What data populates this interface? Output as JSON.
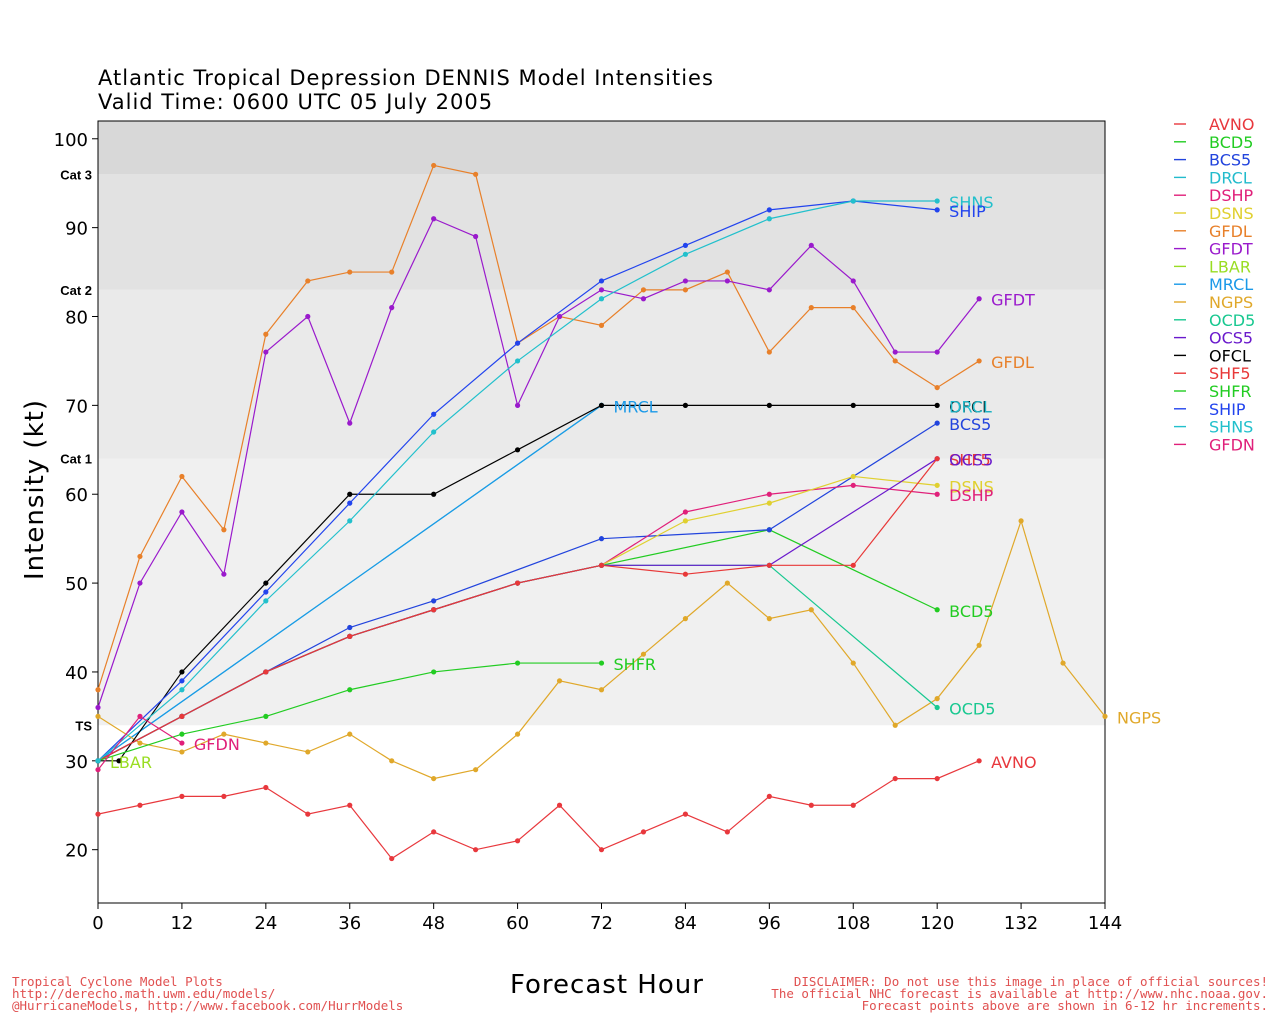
{
  "title_line1": "Atlantic Tropical Depression DENNIS Model Intensities",
  "title_line2": "Valid Time: 0600 UTC 05 July 2005",
  "footer_left": [
    "Tropical Cyclone Model Plots",
    "http://derecho.math.uwm.edu/models/",
    "@HurricaneModels, http://www.facebook.com/HurrModels"
  ],
  "footer_right": [
    "DISCLAIMER: Do not use this image in place of official sources!",
    "The official NHC forecast is available at http://www.nhc.noaa.gov.",
    "Forecast points above are shown in 6-12 hr increments."
  ],
  "chart_data": {
    "type": "line",
    "xlabel": "Forecast Hour",
    "ylabel": "Intensity (kt)",
    "xlim": [
      0,
      144
    ],
    "ylim": [
      14,
      102
    ],
    "xticks": [
      0,
      12,
      24,
      36,
      48,
      60,
      72,
      84,
      96,
      108,
      120,
      132,
      144
    ],
    "yticks": [
      20,
      30,
      40,
      50,
      60,
      70,
      80,
      90,
      100
    ],
    "bands": [
      {
        "label": "TS",
        "from": 34,
        "to": 64,
        "color": "#f0f0f0"
      },
      {
        "label": "Cat 1",
        "from": 64,
        "to": 83,
        "color": "#eaeaea"
      },
      {
        "label": "Cat 2",
        "from": 83,
        "to": 96,
        "color": "#e2e2e2"
      },
      {
        "label": "Cat 3",
        "from": 96,
        "to": 102,
        "color": "#d8d8d8"
      }
    ],
    "band_labels": [
      {
        "label": "TS",
        "value": 34
      },
      {
        "label": "Cat 1",
        "value": 64
      },
      {
        "label": "Cat 2",
        "value": 83
      },
      {
        "label": "Cat 3",
        "value": 96
      }
    ],
    "legend_position": "right",
    "series": [
      {
        "name": "AVNO",
        "color": "#e8383d",
        "x": [
          0,
          6,
          12,
          18,
          24,
          30,
          36,
          42,
          48,
          54,
          60,
          66,
          72,
          78,
          84,
          90,
          96,
          102,
          108,
          114,
          120,
          126
        ],
        "y": [
          24,
          25,
          26,
          26,
          27,
          24,
          25,
          19,
          22,
          20,
          21,
          25,
          20,
          22,
          24,
          22,
          26,
          25,
          25,
          28,
          28,
          30
        ]
      },
      {
        "name": "BCD5",
        "color": "#22cc22",
        "x": [
          0,
          12,
          24,
          36,
          48,
          60,
          72,
          96,
          120
        ],
        "y": [
          30,
          35,
          40,
          44,
          47,
          50,
          52,
          56,
          47
        ]
      },
      {
        "name": "BCS5",
        "color": "#2244dd",
        "x": [
          0,
          12,
          24,
          36,
          48,
          72,
          96,
          120
        ],
        "y": [
          30,
          35,
          40,
          45,
          48,
          55,
          56,
          68
        ]
      },
      {
        "name": "DRCL",
        "color": "#22bbcc",
        "x": [
          0,
          72
        ],
        "y": [
          30,
          70
        ]
      },
      {
        "name": "DSHP",
        "color": "#e0207a",
        "x": [
          0,
          12,
          24,
          36,
          48,
          60,
          72,
          84,
          96,
          108,
          120
        ],
        "y": [
          30,
          35,
          40,
          44,
          47,
          50,
          52,
          58,
          60,
          61,
          60
        ]
      },
      {
        "name": "DSNS",
        "color": "#e0d030",
        "x": [
          0,
          12,
          24,
          36,
          48,
          60,
          72,
          84,
          96,
          108,
          120
        ],
        "y": [
          30,
          35,
          40,
          44,
          47,
          50,
          52,
          57,
          59,
          62,
          61
        ]
      },
      {
        "name": "GFDL",
        "color": "#e8802a",
        "x": [
          0,
          6,
          12,
          18,
          24,
          30,
          36,
          42,
          48,
          54,
          60,
          66,
          72,
          78,
          84,
          90,
          96,
          102,
          108,
          114,
          120,
          126
        ],
        "y": [
          38,
          53,
          62,
          56,
          78,
          84,
          85,
          85,
          97,
          96,
          77,
          80,
          79,
          83,
          83,
          85,
          76,
          81,
          81,
          75,
          72,
          75
        ]
      },
      {
        "name": "GFDT",
        "color": "#9a1acc",
        "x": [
          0,
          6,
          12,
          18,
          24,
          30,
          36,
          42,
          48,
          54,
          60,
          66,
          72,
          78,
          84,
          90,
          96,
          102,
          108,
          114,
          120,
          126
        ],
        "y": [
          36,
          50,
          58,
          51,
          76,
          80,
          68,
          81,
          91,
          89,
          70,
          80,
          83,
          82,
          84,
          84,
          83,
          88,
          84,
          76,
          76,
          82
        ]
      },
      {
        "name": "LBAR",
        "color": "#99dd22",
        "x": [
          0
        ],
        "y": [
          30
        ]
      },
      {
        "name": "MRCL",
        "color": "#1a99e8",
        "x": [
          0,
          72
        ],
        "y": [
          30,
          70
        ]
      },
      {
        "name": "NGPS",
        "color": "#e0a82a",
        "x": [
          0,
          6,
          12,
          18,
          24,
          30,
          36,
          42,
          48,
          54,
          60,
          66,
          72,
          78,
          84,
          90,
          96,
          102,
          108,
          114,
          120,
          126,
          132,
          138,
          144
        ],
        "y": [
          35,
          32,
          31,
          33,
          32,
          31,
          33,
          30,
          28,
          29,
          33,
          39,
          38,
          42,
          46,
          50,
          46,
          47,
          41,
          34,
          37,
          43,
          57,
          41,
          35
        ]
      },
      {
        "name": "OCD5",
        "color": "#18c890",
        "x": [
          0,
          12,
          24,
          36,
          48,
          60,
          72,
          96,
          120
        ],
        "y": [
          30,
          35,
          40,
          44,
          47,
          50,
          52,
          52,
          36
        ]
      },
      {
        "name": "OCS5",
        "color": "#6a1acc",
        "x": [
          0,
          12,
          24,
          36,
          48,
          60,
          72,
          96,
          120
        ],
        "y": [
          30,
          35,
          40,
          44,
          47,
          50,
          52,
          52,
          64
        ]
      },
      {
        "name": "OFCL",
        "color": "#000000",
        "x": [
          0,
          3,
          12,
          24,
          36,
          48,
          60,
          72,
          84,
          96,
          108,
          120
        ],
        "y": [
          30,
          30,
          40,
          50,
          60,
          60,
          65,
          70,
          70,
          70,
          70,
          70
        ]
      },
      {
        "name": "SHF5",
        "color": "#e83838",
        "x": [
          0,
          12,
          24,
          36,
          48,
          60,
          72,
          84,
          96,
          108,
          120
        ],
        "y": [
          30,
          35,
          40,
          44,
          47,
          50,
          52,
          51,
          52,
          52,
          64
        ]
      },
      {
        "name": "SHFR",
        "color": "#22cc22",
        "x": [
          0,
          12,
          24,
          36,
          48,
          60,
          72
        ],
        "y": [
          30,
          33,
          35,
          38,
          40,
          41,
          41
        ]
      },
      {
        "name": "SHIP",
        "color": "#2244ee",
        "x": [
          0,
          12,
          24,
          36,
          48,
          60,
          72,
          84,
          96,
          108,
          120
        ],
        "y": [
          30,
          39,
          49,
          59,
          69,
          77,
          84,
          88,
          92,
          93,
          92
        ]
      },
      {
        "name": "SHNS",
        "color": "#22c0cc",
        "x": [
          0,
          12,
          24,
          36,
          48,
          60,
          72,
          84,
          96,
          108,
          120
        ],
        "y": [
          30,
          38,
          48,
          57,
          67,
          75,
          82,
          87,
          91,
          93,
          93
        ]
      },
      {
        "name": "GFDN",
        "color": "#e0207a",
        "x": [
          0,
          6,
          12
        ],
        "y": [
          29,
          35,
          32
        ]
      }
    ],
    "end_labels": [
      {
        "name": "SHNS",
        "x": 120,
        "y": 93
      },
      {
        "name": "SHIP",
        "x": 120,
        "y": 92
      },
      {
        "name": "GFDT",
        "x": 126,
        "y": 82
      },
      {
        "name": "GFDL",
        "x": 126,
        "y": 75
      },
      {
        "name": "MRCL",
        "x": 72,
        "y": 70
      },
      {
        "name": "OFCL",
        "x": 120,
        "y": 70
      },
      {
        "name": "DRCL",
        "x": 120,
        "y": 70
      },
      {
        "name": "BCS5",
        "x": 120,
        "y": 68
      },
      {
        "name": "SHF5",
        "x": 120,
        "y": 64
      },
      {
        "name": "OCS5",
        "x": 120,
        "y": 64
      },
      {
        "name": "DSNS",
        "x": 120,
        "y": 61
      },
      {
        "name": "DSHP",
        "x": 120,
        "y": 60
      },
      {
        "name": "BCD5",
        "x": 120,
        "y": 47
      },
      {
        "name": "SHFR",
        "x": 72,
        "y": 41
      },
      {
        "name": "OCD5",
        "x": 120,
        "y": 36
      },
      {
        "name": "NGPS",
        "x": 144,
        "y": 35
      },
      {
        "name": "GFDN",
        "x": 12,
        "y": 32
      },
      {
        "name": "LBAR",
        "x": 0,
        "y": 30
      },
      {
        "name": "AVNO",
        "x": 126,
        "y": 30
      }
    ]
  }
}
